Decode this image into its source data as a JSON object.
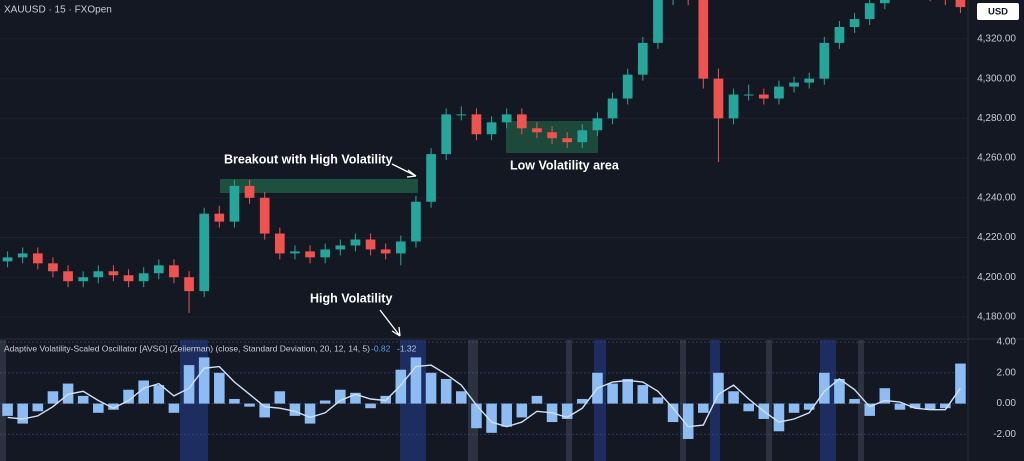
{
  "chart_data": [
    {
      "type": "candlestick",
      "title": "XAUUSD · 15 · FXOpen",
      "currency": "USD",
      "up_color": "#26a69a",
      "down_color": "#ef5350",
      "open": [
        4208,
        4210,
        4212,
        4207,
        4203,
        4198,
        4200,
        4203,
        4201,
        4198,
        4202,
        4206,
        4200,
        4193,
        4232,
        4228,
        4246,
        4240,
        4222,
        4212,
        4213,
        4210,
        4214,
        4216,
        4219,
        4214,
        4212,
        4218,
        4238,
        4262,
        4282,
        4282,
        4272,
        4278,
        4282,
        4275,
        4273,
        4270,
        4268,
        4274,
        4280,
        4290,
        4302,
        4318,
        4340,
        4345,
        4340,
        4300,
        4280,
        4292,
        4292,
        4290,
        4296,
        4298,
        4300,
        4318,
        4326,
        4330,
        4338,
        4345,
        4343,
        4346,
        4342,
        4340
      ],
      "high": [
        4213,
        4215,
        4215,
        4210,
        4206,
        4203,
        4206,
        4206,
        4204,
        4205,
        4209,
        4209,
        4203,
        4235,
        4236,
        4249,
        4249,
        4243,
        4225,
        4216,
        4216,
        4217,
        4219,
        4222,
        4222,
        4217,
        4221,
        4241,
        4265,
        4285,
        4286,
        4285,
        4281,
        4285,
        4285,
        4278,
        4276,
        4273,
        4277,
        4283,
        4293,
        4305,
        4321,
        4343,
        4348,
        4348,
        4342,
        4305,
        4295,
        4297,
        4295,
        4299,
        4301,
        4303,
        4321,
        4329,
        4333,
        4341,
        4348,
        4348,
        4349,
        4349,
        4345,
        4343
      ],
      "low": [
        4205,
        4207,
        4204,
        4200,
        4195,
        4195,
        4197,
        4198,
        4195,
        4195,
        4199,
        4197,
        4182,
        4190,
        4225,
        4225,
        4237,
        4219,
        4209,
        4209,
        4207,
        4207,
        4211,
        4213,
        4211,
        4209,
        4206,
        4215,
        4235,
        4259,
        4279,
        4269,
        4269,
        4275,
        4272,
        4270,
        4267,
        4265,
        4265,
        4271,
        4277,
        4287,
        4299,
        4315,
        4337,
        4337,
        4295,
        4258,
        4277,
        4289,
        4287,
        4287,
        4293,
        4295,
        4297,
        4315,
        4323,
        4327,
        4335,
        4340,
        4340,
        4339,
        4337,
        4333
      ],
      "close": [
        4210,
        4212,
        4207,
        4203,
        4198,
        4200,
        4203,
        4201,
        4198,
        4202,
        4206,
        4200,
        4193,
        4232,
        4228,
        4246,
        4240,
        4222,
        4212,
        4213,
        4210,
        4214,
        4216,
        4219,
        4214,
        4212,
        4218,
        4238,
        4262,
        4282,
        4282,
        4272,
        4278,
        4282,
        4275,
        4273,
        4270,
        4268,
        4274,
        4280,
        4290,
        4302,
        4318,
        4340,
        4345,
        4340,
        4300,
        4280,
        4292,
        4292,
        4290,
        4296,
        4298,
        4300,
        4318,
        4326,
        4330,
        4338,
        4345,
        4343,
        4346,
        4342,
        4340,
        4336
      ],
      "ylim": [
        4169.4,
        4339.6
      ],
      "yticks": [
        {
          "value": 4180,
          "label": "4,180.00"
        },
        {
          "value": 4200,
          "label": "4,200.00"
        },
        {
          "value": 4220,
          "label": "4,220.00"
        },
        {
          "value": 4240,
          "label": "4,240.00"
        },
        {
          "value": 4260,
          "label": "4,260.00"
        },
        {
          "value": 4280,
          "label": "4,280.00"
        },
        {
          "value": 4300,
          "label": "4,300.00"
        },
        {
          "value": 4320,
          "label": "4,320.00"
        }
      ],
      "annotations": [
        "Breakout with High Volatility",
        "Low Volatility area",
        "High Volatility"
      ]
    },
    {
      "type": "oscillator",
      "title": "Adaptive Volatility-Scaled Oscillator [AVSO] (Zeiierman) (close, Standard Deviation, 20, 12, 14, 5)",
      "current_values": [
        -0.82,
        -1.32
      ],
      "series": [
        {
          "type": "bar",
          "color": "#8cbcf2",
          "values": [
            -0.8,
            -1.3,
            -0.5,
            0.8,
            1.3,
            0.5,
            -0.6,
            -0.4,
            0.9,
            1.5,
            1.2,
            -0.6,
            2.5,
            3.0,
            2.0,
            0.3,
            -0.2,
            -0.9,
            0.8,
            -0.8,
            -1.3,
            0.2,
            0.9,
            0.7,
            -0.3,
            0.5,
            2.2,
            3.0,
            2.0,
            1.6,
            0.8,
            -1.6,
            -1.9,
            -1.5,
            -0.9,
            0.5,
            -1.2,
            -1.0,
            0.3,
            2.0,
            1.3,
            1.6,
            1.2,
            0.4,
            -1.2,
            -2.3,
            -0.6,
            2.0,
            0.8,
            -0.5,
            -1.0,
            -1.8,
            -0.6,
            -0.4,
            2.0,
            1.6,
            0.3,
            -0.8,
            1.0,
            -0.4,
            -0.3,
            -0.4,
            -0.3,
            2.6
          ]
        },
        {
          "type": "line",
          "color": "#cfe0f7",
          "values": [
            -0.9,
            -1.0,
            -0.8,
            -0.2,
            0.6,
            0.8,
            0.2,
            -0.3,
            0.2,
            1.0,
            1.3,
            0.5,
            1.0,
            2.3,
            2.4,
            1.4,
            0.6,
            -0.2,
            -0.3,
            -0.5,
            -0.9,
            -0.6,
            0.2,
            0.6,
            0.3,
            0.2,
            1.2,
            2.4,
            2.5,
            1.9,
            1.2,
            -0.1,
            -1.2,
            -1.5,
            -1.2,
            -0.5,
            -0.6,
            -0.9,
            -0.3,
            1.0,
            1.4,
            1.5,
            1.4,
            0.8,
            -0.3,
            -1.5,
            -1.4,
            0.6,
            1.2,
            0.3,
            -0.5,
            -1.2,
            -1.0,
            -0.6,
            0.8,
            1.6,
            0.9,
            -0.2,
            0.2,
            0.1,
            -0.3,
            -0.4,
            -0.4,
            1.0
          ]
        }
      ],
      "ylim": [
        -3.73,
        4.13
      ],
      "yticks": [
        {
          "value": -2,
          "label": "-2.00"
        },
        {
          "value": 0,
          "label": "0.00"
        },
        {
          "value": 2,
          "label": "2.00"
        },
        {
          "value": 4,
          "label": "4.00"
        }
      ]
    }
  ]
}
